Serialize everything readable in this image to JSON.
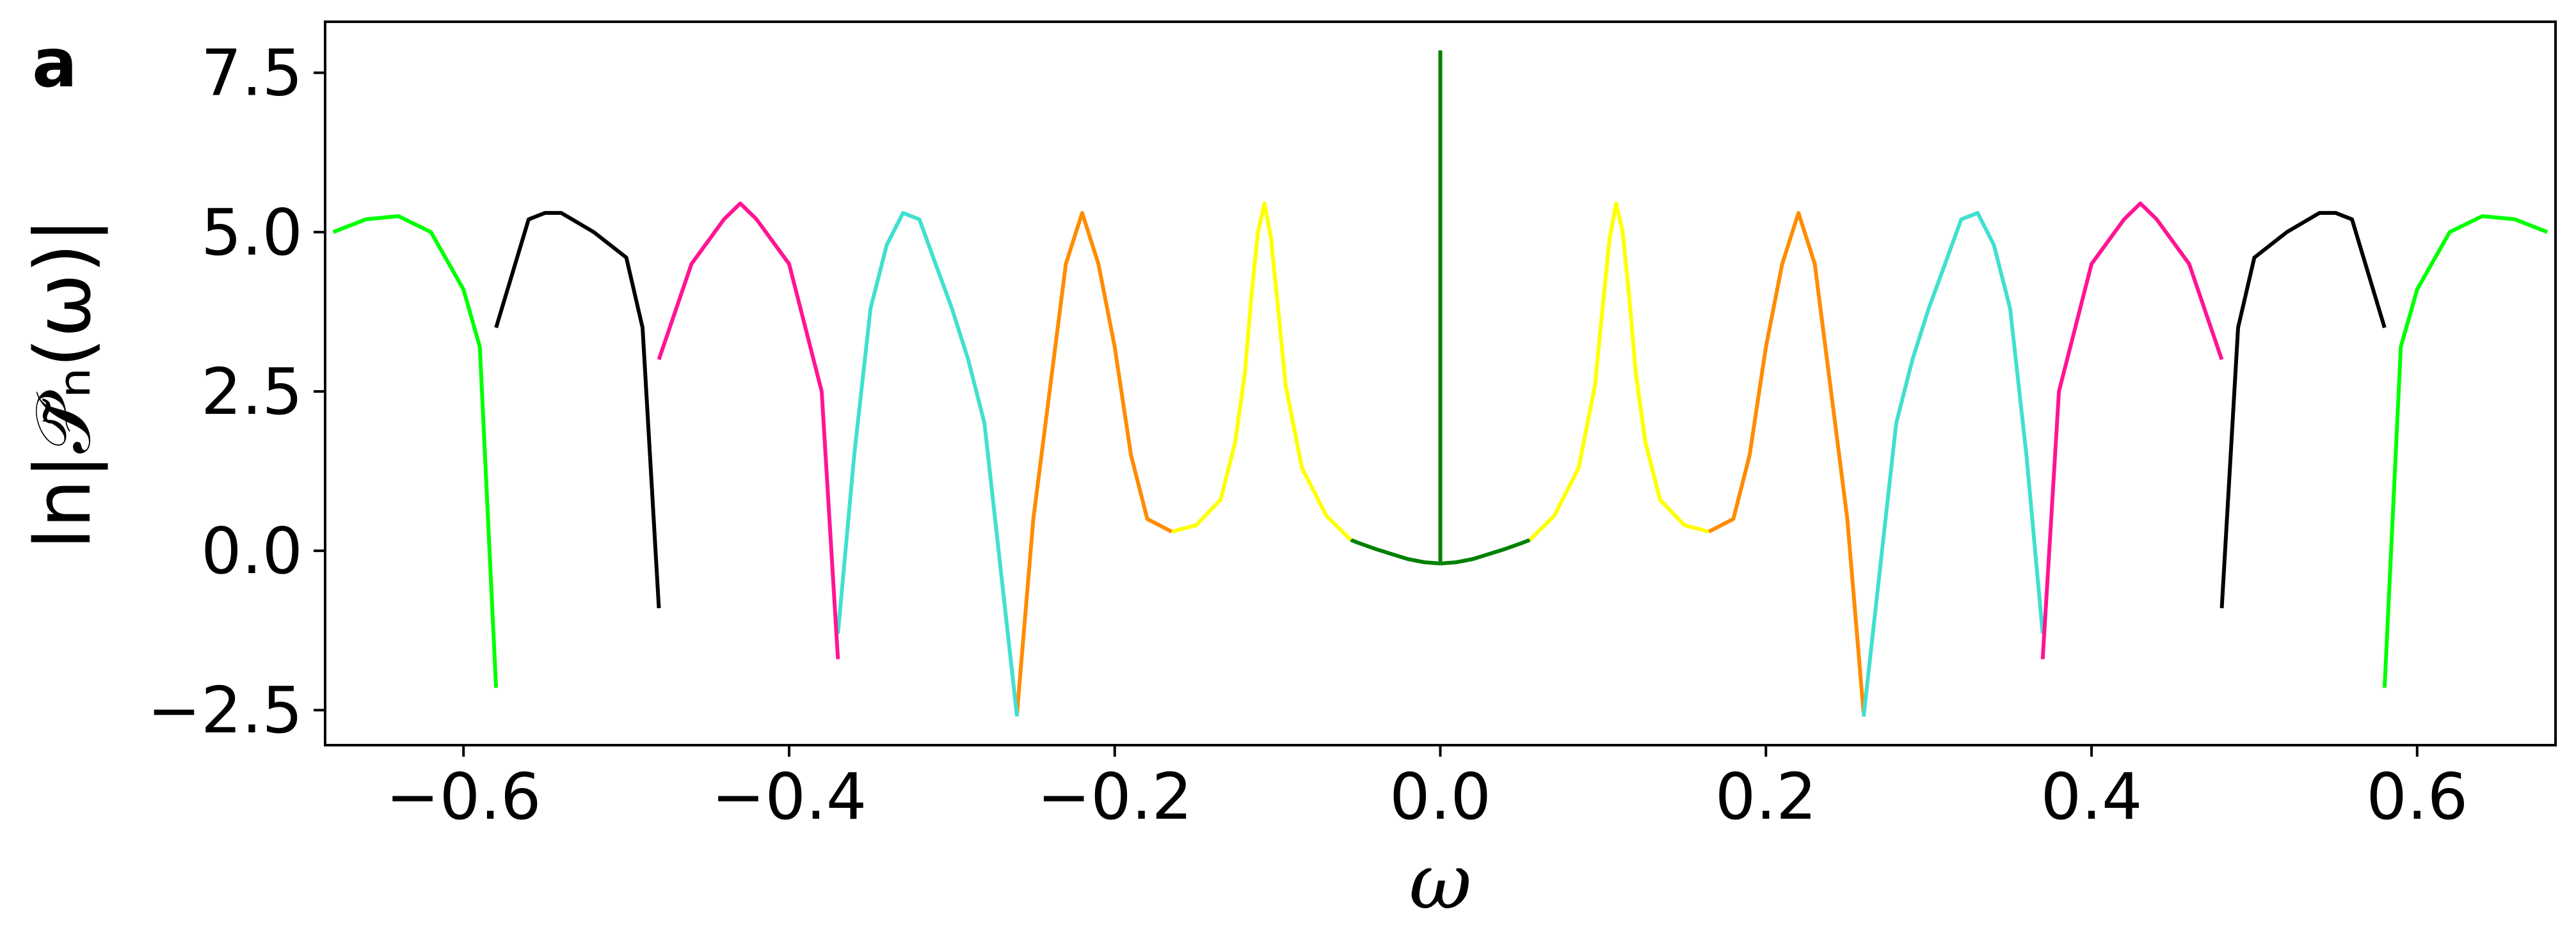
{
  "panel_label": "a",
  "chart_data": {
    "type": "line",
    "title": "",
    "xlabel": "ω",
    "ylabel": "ln|𝒫̃ₙ(ω)|",
    "xlim": [
      -0.685,
      0.685
    ],
    "ylim": [
      -3.05,
      8.3
    ],
    "xticks": [
      -0.6,
      -0.4,
      -0.2,
      0.0,
      0.2,
      0.4,
      0.6
    ],
    "xtick_labels": [
      "−0.6",
      "−0.4",
      "−0.2",
      "0.0",
      "0.2",
      "0.4",
      "0.6"
    ],
    "yticks": [
      -2.5,
      0.0,
      2.5,
      5.0,
      7.5
    ],
    "ytick_labels": [
      "−2.5",
      "0.0",
      "2.5",
      "5.0",
      "7.5"
    ],
    "grid": false,
    "legend": "none",
    "symmetric_about_zero": true,
    "series": [
      {
        "color": "#008000",
        "x": [
          0.0,
          0.01,
          0.02,
          0.03,
          0.04,
          0.05,
          0.055
        ],
        "y": [
          -0.2,
          -0.18,
          -0.13,
          -0.05,
          0.03,
          0.12,
          0.17
        ]
      },
      {
        "color": "#008000",
        "x": [
          0.0,
          0.0
        ],
        "y": [
          -0.2,
          7.85
        ]
      },
      {
        "color": "#ffff00",
        "x": [
          0.055,
          0.07,
          0.085,
          0.095,
          0.1,
          0.104,
          0.108,
          0.112,
          0.116,
          0.12,
          0.126,
          0.135,
          0.15,
          0.165
        ],
        "y": [
          0.17,
          0.55,
          1.3,
          2.6,
          3.9,
          4.9,
          5.45,
          5.0,
          4.0,
          2.8,
          1.7,
          0.8,
          0.4,
          0.3
        ]
      },
      {
        "color": "#ff8c00",
        "x": [
          0.165,
          0.18,
          0.19,
          0.2,
          0.21,
          0.22,
          0.23,
          0.24,
          0.25,
          0.26
        ],
        "y": [
          0.3,
          0.5,
          1.5,
          3.2,
          4.5,
          5.3,
          4.5,
          2.5,
          0.5,
          -2.55
        ]
      },
      {
        "color": "#40e0d0",
        "x": [
          0.26,
          0.28,
          0.29,
          0.3,
          0.31,
          0.32,
          0.33,
          0.34,
          0.35,
          0.36,
          0.37
        ],
        "y": [
          -2.6,
          2.0,
          3.0,
          3.8,
          4.5,
          5.2,
          5.3,
          4.8,
          3.8,
          1.5,
          -1.3
        ]
      },
      {
        "color": "#ff1493",
        "x": [
          0.37,
          0.38,
          0.4,
          0.42,
          0.43,
          0.44,
          0.46,
          0.48
        ],
        "y": [
          -1.7,
          2.5,
          4.5,
          5.2,
          5.45,
          5.2,
          4.5,
          3.0
        ]
      },
      {
        "color": "#000000",
        "x": [
          0.48,
          0.49,
          0.5,
          0.52,
          0.54,
          0.55,
          0.56,
          0.58
        ],
        "y": [
          -0.9,
          3.5,
          4.6,
          5.0,
          5.3,
          5.3,
          5.2,
          3.5
        ]
      },
      {
        "color": "#00ff00",
        "x": [
          0.58,
          0.59,
          0.6,
          0.62,
          0.64,
          0.66,
          0.68
        ],
        "y": [
          -2.15,
          3.2,
          4.1,
          5.0,
          5.25,
          5.2,
          5.0
        ]
      }
    ]
  }
}
